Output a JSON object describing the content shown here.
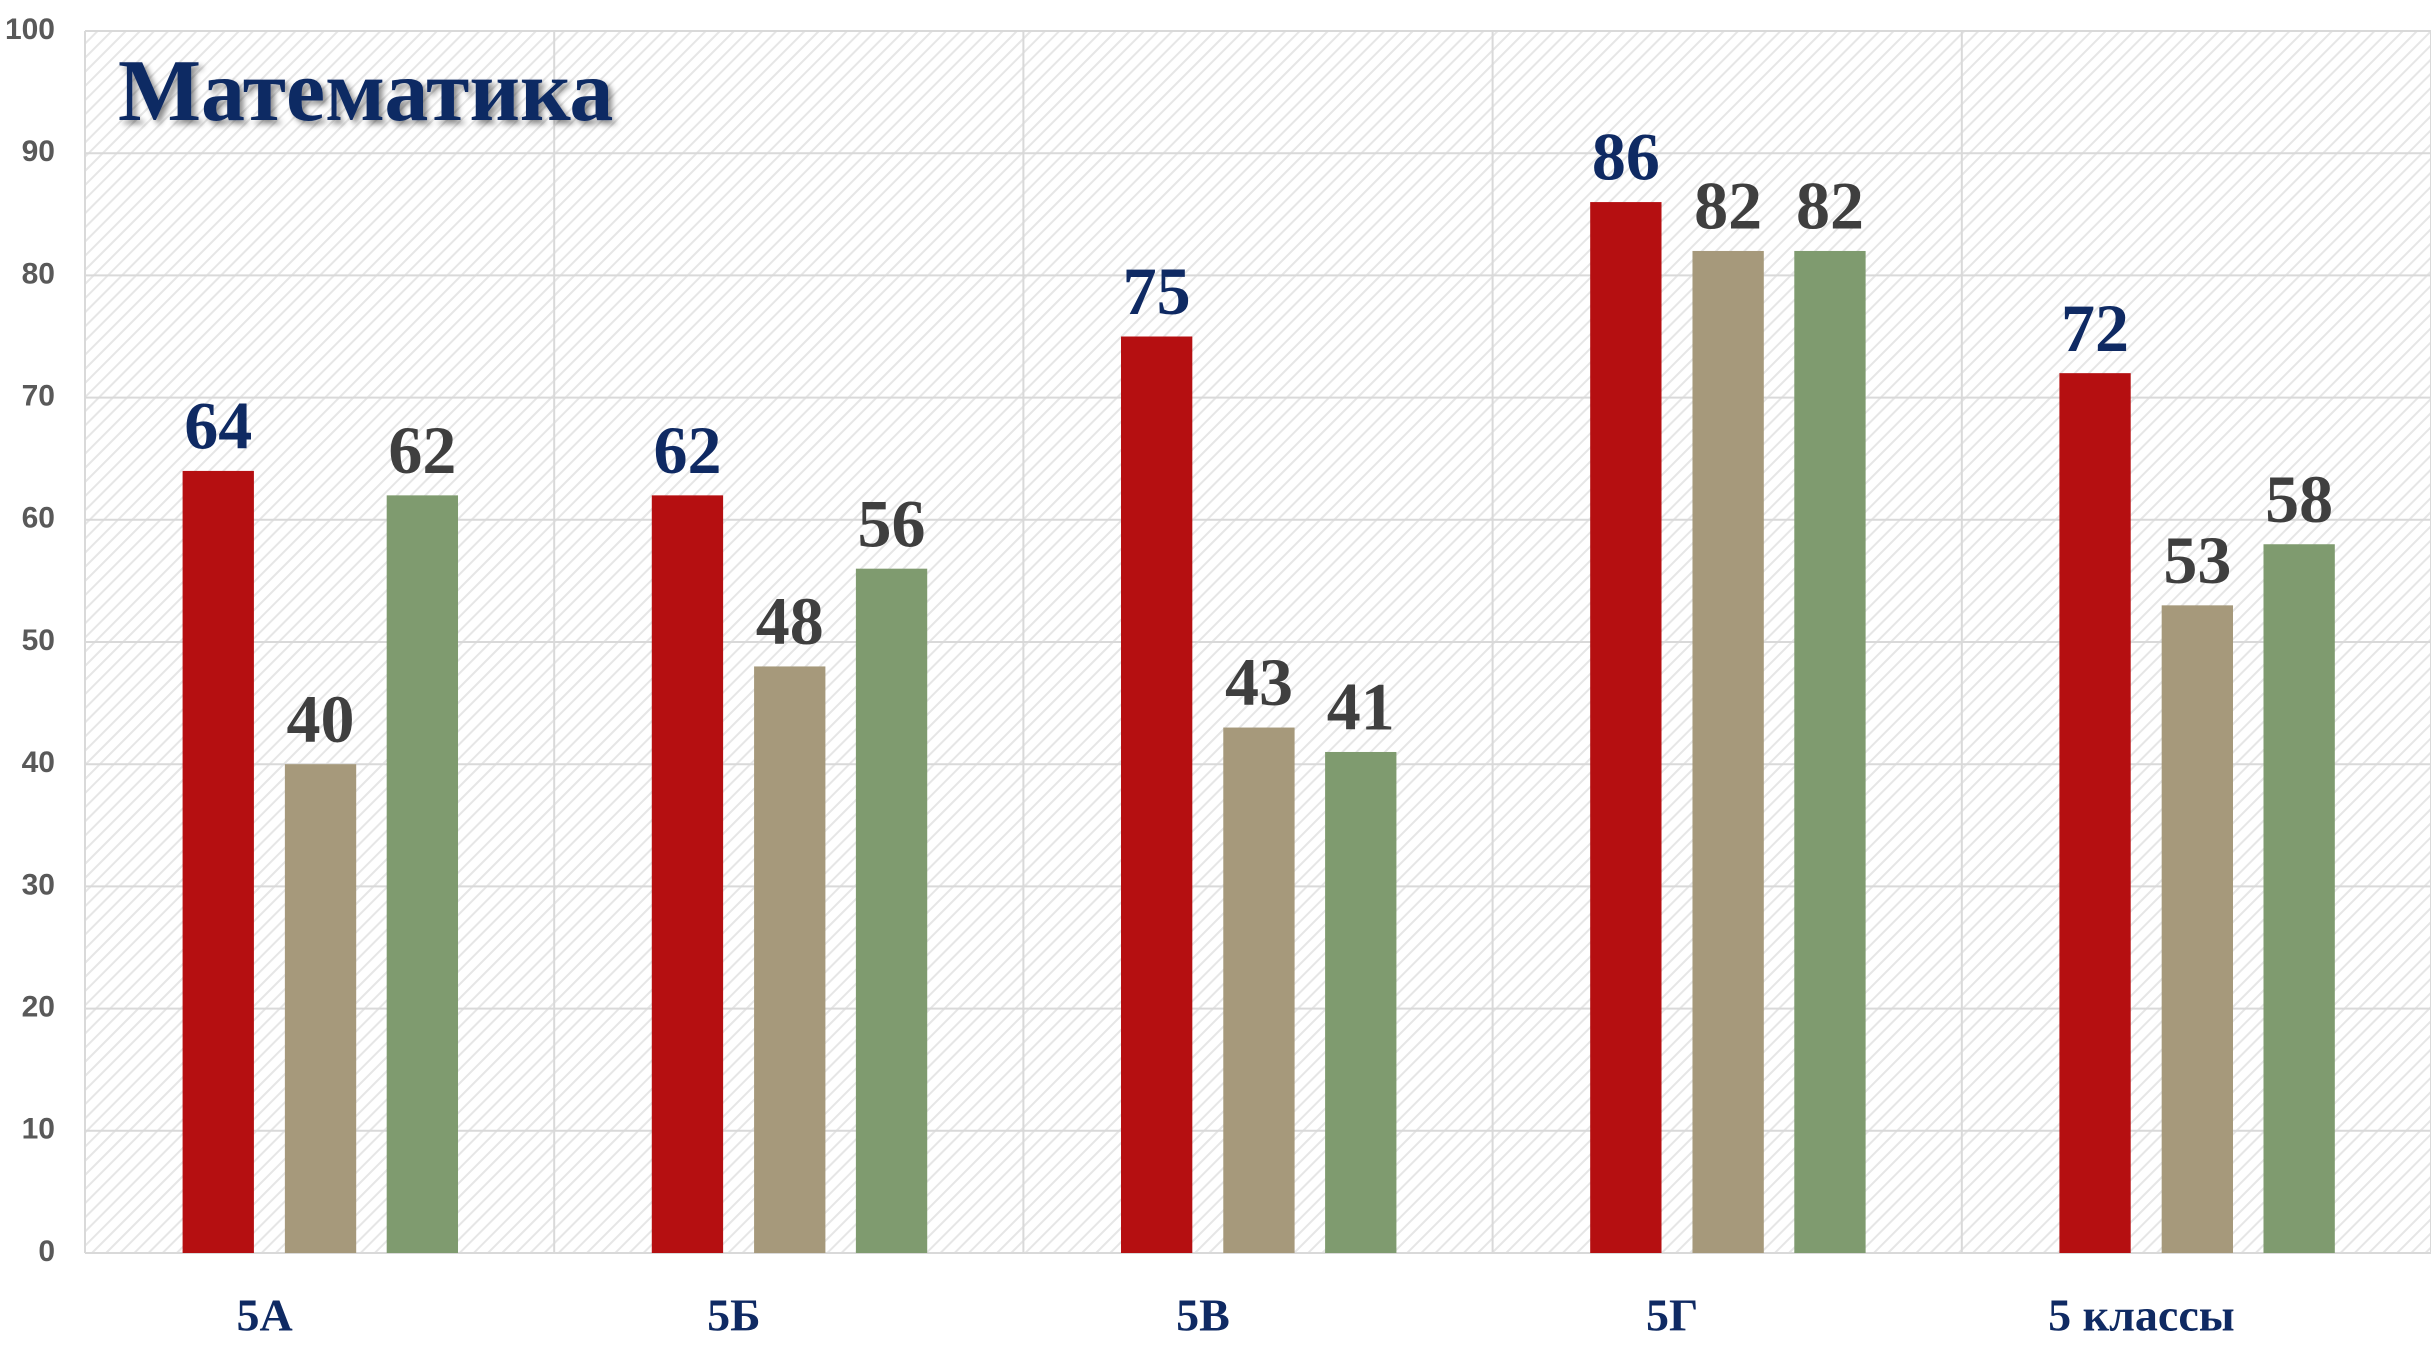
{
  "chart_data": {
    "type": "bar",
    "title": "Математика",
    "categories": [
      "5А",
      "5Б",
      "5В",
      "5Г",
      "5 классы"
    ],
    "series": [
      {
        "color": "#b50f11",
        "label_color": "#0f2a63",
        "values": [
          64,
          62,
          75,
          86,
          72
        ]
      },
      {
        "color": "#a6997b",
        "label_color": "#3f3f3f",
        "values": [
          40,
          48,
          43,
          82,
          53
        ]
      },
      {
        "color": "#7f9b6f",
        "label_color": "#3f3f3f",
        "values": [
          62,
          56,
          41,
          82,
          58
        ]
      }
    ],
    "ylim": [
      0,
      100
    ],
    "yticks": [
      0,
      10,
      20,
      30,
      40,
      50,
      60,
      70,
      80,
      90,
      100
    ],
    "grid": true
  }
}
